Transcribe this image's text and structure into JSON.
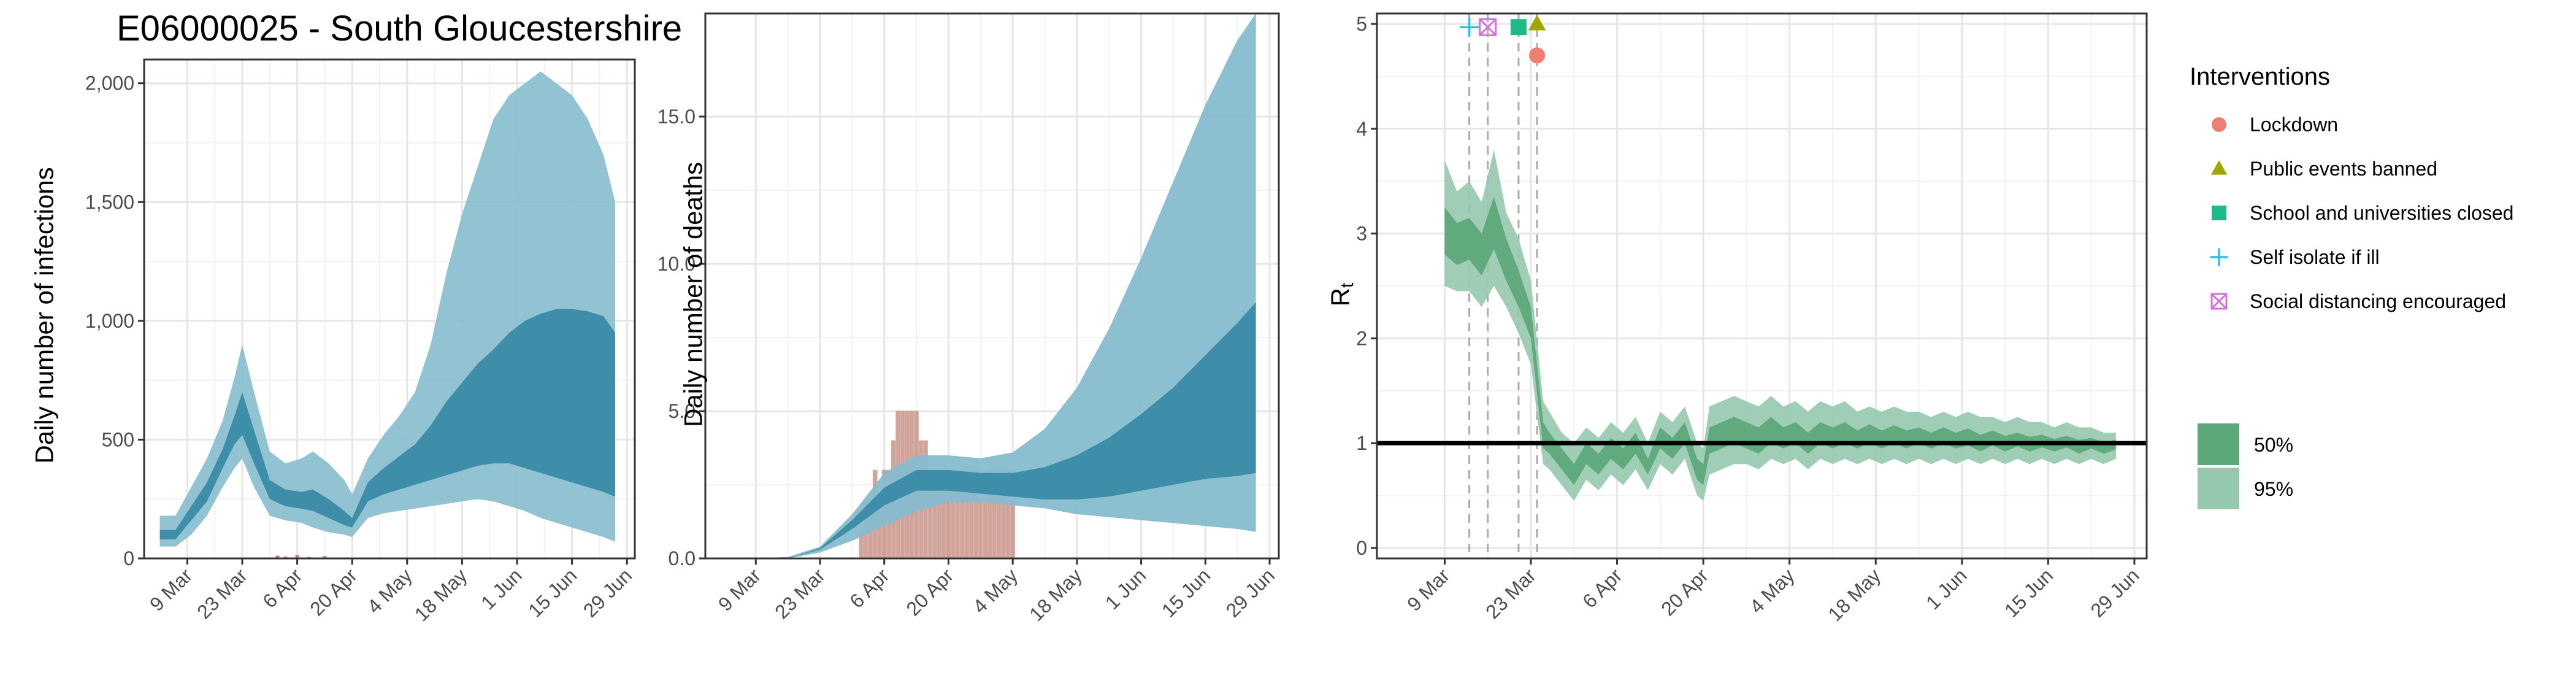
{
  "chart_data": [
    {
      "type": "area",
      "title": "E06000025 - South Gloucestershire",
      "xlabel": "",
      "ylabel": "Daily number of infections",
      "x_axis": {
        "start": "2020-02-27",
        "end": "2020-07-01"
      },
      "xticks": [
        "9 Mar",
        "23 Mar",
        "6 Apr",
        "20 Apr",
        "4 May",
        "18 May",
        "1 Jun",
        "15 Jun",
        "29 Jun"
      ],
      "ylim": [
        0,
        2100
      ],
      "yticks": [
        0,
        500,
        1000,
        1500,
        2000
      ],
      "ytick_labels": [
        "0",
        "500",
        "1,000",
        "1,500",
        "2,000"
      ],
      "grid": true,
      "colors": {
        "band95": "#86bccd",
        "band50": "#3a8aa6",
        "cases": "#c0857a"
      },
      "bands": [
        {
          "x": [
            "2020-03-02",
            "2020-03-06",
            "2020-03-10",
            "2020-03-14",
            "2020-03-18",
            "2020-03-21",
            "2020-03-23",
            "2020-03-26",
            "2020-03-30",
            "2020-04-03",
            "2020-04-07",
            "2020-04-10",
            "2020-04-14",
            "2020-04-18",
            "2020-04-20",
            "2020-04-24",
            "2020-04-28",
            "2020-05-02",
            "2020-05-06",
            "2020-05-10",
            "2020-05-14",
            "2020-05-18",
            "2020-05-22",
            "2020-05-26",
            "2020-05-30",
            "2020-06-03",
            "2020-06-07",
            "2020-06-11",
            "2020-06-15",
            "2020-06-19",
            "2020-06-23",
            "2020-06-26"
          ],
          "lower95": [
            50,
            50,
            100,
            180,
            300,
            380,
            420,
            300,
            180,
            160,
            150,
            130,
            110,
            100,
            90,
            170,
            190,
            200,
            210,
            220,
            230,
            240,
            250,
            240,
            220,
            200,
            170,
            150,
            130,
            110,
            90,
            70
          ],
          "upper95": [
            180,
            180,
            300,
            420,
            580,
            760,
            900,
            700,
            450,
            400,
            420,
            450,
            400,
            330,
            270,
            420,
            520,
            600,
            700,
            900,
            1200,
            1450,
            1650,
            1850,
            1950,
            2000,
            2050,
            2000,
            1950,
            1850,
            1700,
            1500
          ],
          "lower50": [
            80,
            80,
            160,
            240,
            380,
            480,
            520,
            400,
            250,
            220,
            210,
            200,
            170,
            140,
            130,
            240,
            270,
            290,
            310,
            330,
            350,
            370,
            390,
            400,
            400,
            380,
            360,
            340,
            320,
            300,
            280,
            260
          ],
          "upper50": [
            120,
            120,
            220,
            320,
            460,
            600,
            700,
            540,
            330,
            290,
            280,
            290,
            250,
            200,
            170,
            320,
            380,
            430,
            480,
            560,
            660,
            740,
            820,
            880,
            950,
            1000,
            1030,
            1050,
            1050,
            1040,
            1020,
            950
          ]
        }
      ],
      "observed": {
        "x": [
          "2020-04-01",
          "2020-04-03",
          "2020-04-06",
          "2020-04-09",
          "2020-04-13"
        ],
        "values": [
          12,
          8,
          15,
          6,
          10
        ]
      }
    },
    {
      "type": "area",
      "title": "",
      "xlabel": "",
      "ylabel": "Daily number of deaths",
      "x_axis": {
        "start": "2020-02-27",
        "end": "2020-07-01"
      },
      "xticks": [
        "9 Mar",
        "23 Mar",
        "6 Apr",
        "20 Apr",
        "4 May",
        "18 May",
        "1 Jun",
        "15 Jun",
        "29 Jun"
      ],
      "ylim": [
        0,
        18.5
      ],
      "yticks": [
        0,
        5,
        10,
        15
      ],
      "ytick_labels": [
        "0.0",
        "5.0",
        "10.0",
        "15.0"
      ],
      "grid": true,
      "colors": {
        "band95": "#86bccd",
        "band50": "#3a8aa6",
        "bars": "#c0857a"
      },
      "bands": [
        {
          "x": [
            "2020-03-02",
            "2020-03-09",
            "2020-03-16",
            "2020-03-23",
            "2020-03-30",
            "2020-04-06",
            "2020-04-13",
            "2020-04-20",
            "2020-04-27",
            "2020-05-04",
            "2020-05-11",
            "2020-05-18",
            "2020-05-25",
            "2020-06-01",
            "2020-06-08",
            "2020-06-15",
            "2020-06-22",
            "2020-06-26"
          ],
          "lower95": [
            0,
            0,
            0,
            0.2,
            0.6,
            1.1,
            1.6,
            1.9,
            1.9,
            1.8,
            1.7,
            1.5,
            1.4,
            1.3,
            1.2,
            1.1,
            1.0,
            0.9
          ],
          "upper95": [
            0,
            0,
            0.05,
            0.4,
            1.5,
            2.9,
            3.5,
            3.5,
            3.4,
            3.6,
            4.4,
            5.8,
            7.8,
            10.2,
            12.8,
            15.4,
            17.6,
            18.5
          ],
          "lower50": [
            0,
            0,
            0,
            0.3,
            1.0,
            1.8,
            2.3,
            2.3,
            2.2,
            2.1,
            2.0,
            2.0,
            2.1,
            2.3,
            2.5,
            2.7,
            2.8,
            2.9
          ],
          "upper50": [
            0,
            0,
            0,
            0.35,
            1.3,
            2.4,
            3.0,
            3.0,
            2.9,
            2.9,
            3.1,
            3.5,
            4.1,
            4.9,
            5.8,
            6.9,
            8.0,
            8.7
          ]
        }
      ],
      "bars": {
        "x": [
          "2020-04-01",
          "2020-04-02",
          "2020-04-03",
          "2020-04-04",
          "2020-04-05",
          "2020-04-06",
          "2020-04-07",
          "2020-04-08",
          "2020-04-09",
          "2020-04-10",
          "2020-04-11",
          "2020-04-12",
          "2020-04-13",
          "2020-04-14",
          "2020-04-15",
          "2020-04-16",
          "2020-04-17",
          "2020-04-18",
          "2020-04-19",
          "2020-04-20",
          "2020-04-21",
          "2020-04-22",
          "2020-04-23",
          "2020-04-24",
          "2020-04-25",
          "2020-04-26",
          "2020-04-27",
          "2020-04-28",
          "2020-04-29",
          "2020-04-30",
          "2020-05-01",
          "2020-05-02",
          "2020-05-03",
          "2020-05-04"
        ],
        "values": [
          1,
          2,
          2,
          3,
          2,
          3,
          3,
          4,
          5,
          5,
          5,
          5,
          5,
          4,
          4,
          3,
          3,
          3,
          3,
          3,
          3,
          3,
          3,
          3,
          3,
          3,
          2,
          2,
          3,
          3,
          3,
          3,
          3,
          3
        ]
      }
    },
    {
      "type": "area",
      "title": "",
      "xlabel": "",
      "ylabel": "R",
      "ylabel_sub": "t",
      "x_axis": {
        "start": "2020-02-27",
        "end": "2020-07-01"
      },
      "xticks": [
        "9 Mar",
        "23 Mar",
        "6 Apr",
        "20 Apr",
        "4 May",
        "18 May",
        "1 Jun",
        "15 Jun",
        "29 Jun"
      ],
      "ylim": [
        -0.1,
        5.1
      ],
      "yticks": [
        0,
        1,
        2,
        3,
        4,
        5
      ],
      "ytick_labels": [
        "0",
        "1",
        "2",
        "3",
        "4",
        "5"
      ],
      "grid": true,
      "reference_line": 1,
      "colors": {
        "band95": "#96c8ae",
        "band50": "#5da87b",
        "line": "#000000",
        "vline": "#aaaaaa"
      },
      "bands": [
        {
          "x": [
            "2020-03-09",
            "2020-03-11",
            "2020-03-13",
            "2020-03-15",
            "2020-03-17",
            "2020-03-19",
            "2020-03-21",
            "2020-03-23",
            "2020-03-25",
            "2020-03-26",
            "2020-03-28",
            "2020-03-30",
            "2020-04-01",
            "2020-04-03",
            "2020-04-05",
            "2020-04-07",
            "2020-04-09",
            "2020-04-11",
            "2020-04-13",
            "2020-04-15",
            "2020-04-17",
            "2020-04-19",
            "2020-04-20",
            "2020-04-21",
            "2020-04-23",
            "2020-04-25",
            "2020-04-27",
            "2020-04-29",
            "2020-05-01",
            "2020-05-03",
            "2020-05-05",
            "2020-05-07",
            "2020-05-09",
            "2020-05-11",
            "2020-05-13",
            "2020-05-15",
            "2020-05-17",
            "2020-05-19",
            "2020-05-21",
            "2020-05-23",
            "2020-05-25",
            "2020-05-27",
            "2020-05-29",
            "2020-05-31",
            "2020-06-02",
            "2020-06-04",
            "2020-06-06",
            "2020-06-08",
            "2020-06-10",
            "2020-06-12",
            "2020-06-14",
            "2020-06-16",
            "2020-06-18",
            "2020-06-20",
            "2020-06-22",
            "2020-06-24",
            "2020-06-26"
          ],
          "lower95": [
            2.5,
            2.45,
            2.45,
            2.3,
            2.5,
            2.3,
            2.05,
            1.75,
            0.8,
            0.75,
            0.6,
            0.45,
            0.65,
            0.55,
            0.7,
            0.6,
            0.75,
            0.55,
            0.8,
            0.7,
            0.85,
            0.5,
            0.45,
            0.7,
            0.75,
            0.8,
            0.8,
            0.75,
            0.85,
            0.8,
            0.85,
            0.75,
            0.85,
            0.8,
            0.85,
            0.8,
            0.85,
            0.8,
            0.85,
            0.8,
            0.85,
            0.8,
            0.85,
            0.8,
            0.85,
            0.8,
            0.85,
            0.8,
            0.85,
            0.8,
            0.85,
            0.8,
            0.85,
            0.8,
            0.85,
            0.8,
            0.85
          ],
          "upper95": [
            3.7,
            3.4,
            3.5,
            3.3,
            3.8,
            3.2,
            2.95,
            2.55,
            1.4,
            1.3,
            1.1,
            1.0,
            1.15,
            1.05,
            1.2,
            1.1,
            1.25,
            1.0,
            1.3,
            1.2,
            1.35,
            1.0,
            0.95,
            1.35,
            1.4,
            1.45,
            1.4,
            1.35,
            1.45,
            1.35,
            1.4,
            1.3,
            1.4,
            1.35,
            1.4,
            1.3,
            1.35,
            1.3,
            1.35,
            1.3,
            1.3,
            1.25,
            1.3,
            1.25,
            1.3,
            1.25,
            1.25,
            1.2,
            1.25,
            1.2,
            1.2,
            1.15,
            1.2,
            1.15,
            1.15,
            1.1,
            1.1
          ],
          "lower50": [
            2.8,
            2.7,
            2.75,
            2.6,
            2.85,
            2.55,
            2.3,
            2.0,
            0.95,
            0.9,
            0.75,
            0.6,
            0.8,
            0.7,
            0.85,
            0.75,
            0.9,
            0.7,
            0.95,
            0.85,
            1.0,
            0.65,
            0.6,
            0.9,
            0.95,
            1.0,
            0.95,
            0.9,
            1.0,
            0.95,
            1.0,
            0.9,
            1.0,
            0.95,
            1.0,
            0.95,
            1.0,
            0.95,
            1.0,
            0.95,
            1.0,
            0.95,
            1.0,
            0.95,
            0.98,
            0.92,
            0.98,
            0.92,
            0.97,
            0.92,
            0.96,
            0.92,
            0.96,
            0.9,
            0.95,
            0.9,
            0.94
          ],
          "upper50": [
            3.25,
            3.1,
            3.15,
            3.0,
            3.35,
            2.95,
            2.65,
            2.3,
            1.2,
            1.1,
            0.95,
            0.8,
            1.0,
            0.9,
            1.05,
            0.95,
            1.1,
            0.85,
            1.15,
            1.05,
            1.2,
            0.85,
            0.8,
            1.15,
            1.2,
            1.25,
            1.2,
            1.15,
            1.25,
            1.15,
            1.2,
            1.1,
            1.2,
            1.15,
            1.2,
            1.12,
            1.18,
            1.12,
            1.17,
            1.12,
            1.15,
            1.1,
            1.15,
            1.1,
            1.14,
            1.08,
            1.12,
            1.07,
            1.1,
            1.06,
            1.08,
            1.04,
            1.07,
            1.03,
            1.05,
            1.01,
            1.03
          ]
        }
      ],
      "interventions": [
        {
          "name": "Lockdown",
          "date": "2020-03-24",
          "y": 4.7,
          "shape": "circle",
          "color": "#f07f72"
        },
        {
          "name": "Public events banned",
          "date": "2020-03-24",
          "y": 5.0,
          "shape": "triangle",
          "color": "#a3a500"
        },
        {
          "name": "School and universities closed",
          "date": "2020-03-21",
          "y": 4.97,
          "shape": "square",
          "color": "#1db989"
        },
        {
          "name": "Self isolate if ill",
          "date": "2020-03-13",
          "y": 4.97,
          "shape": "plus",
          "color": "#2fc0d9"
        },
        {
          "name": "Social distancing encouraged",
          "date": "2020-03-16",
          "y": 4.97,
          "shape": "boxcross",
          "color": "#d46fe0"
        }
      ]
    }
  ],
  "legend": {
    "title": "Interventions",
    "items": [
      {
        "label": "Lockdown",
        "shape": "circle",
        "color": "#f07f72"
      },
      {
        "label": "Public events banned",
        "shape": "triangle",
        "color": "#a3a500"
      },
      {
        "label": "School and universities closed",
        "shape": "square",
        "color": "#1db989"
      },
      {
        "label": "Self isolate if ill",
        "shape": "plus",
        "color": "#2fc0d9"
      },
      {
        "label": "Social distancing encouraged",
        "shape": "boxcross",
        "color": "#d46fe0"
      }
    ],
    "bands": [
      {
        "label": "50%",
        "color": "#5da87b"
      },
      {
        "label": "95%",
        "color": "#96c8ae"
      }
    ]
  }
}
